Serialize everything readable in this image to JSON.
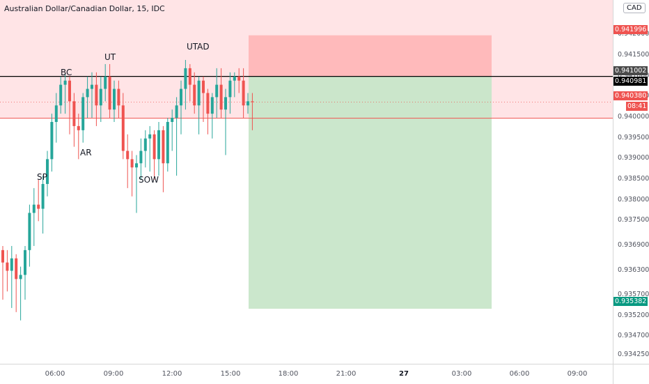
{
  "title": "Australian Dollar/Canadian Dollar, 15, IDC",
  "currency": "CAD",
  "colors": {
    "up": "#26a69a",
    "down": "#ef5350",
    "risk_zone": "#ffcdd2",
    "stop_box": "#ffb3b3",
    "target_box": "#c8e6c9",
    "entry_line": "#000000",
    "stop_line": "#ef5350"
  },
  "price_ticks": [
    "0.942000",
    "0.941500",
    "0.941000",
    "0.940500",
    "0.940000",
    "0.939500",
    "0.939000",
    "0.938500",
    "0.938000",
    "0.937500",
    "0.936900",
    "0.936300",
    "0.935700",
    "0.935200",
    "0.934700",
    "0.934250"
  ],
  "time_ticks": [
    "06:00",
    "09:00",
    "12:00",
    "15:00",
    "18:00",
    "21:00",
    "27",
    "03:00",
    "06:00",
    "09:00"
  ],
  "price_tags": {
    "stop": "0.941996",
    "entry": "0.941002",
    "last_price": "0.940981",
    "current": "0.940380",
    "countdown": "08:41",
    "target": "0.935382"
  },
  "annotations": {
    "sp": "SP",
    "bc": "BC",
    "ar": "AR",
    "ut": "UT",
    "sow": "SOW",
    "utad": "UTAD"
  },
  "chart_data": {
    "type": "candlestick",
    "symbol": "AUDCAD",
    "interval": "15",
    "ylim": [
      0.93405,
      0.94285
    ],
    "entry": 0.941002,
    "stop": 0.941996,
    "target": 0.935382,
    "stop_level_line": 0.93999,
    "candles": [
      {
        "o": 0.9368,
        "h": 0.9369,
        "l": 0.9356,
        "c": 0.9365
      },
      {
        "o": 0.9365,
        "h": 0.9368,
        "l": 0.9358,
        "c": 0.9363
      },
      {
        "o": 0.9363,
        "h": 0.9369,
        "l": 0.9354,
        "c": 0.9366
      },
      {
        "o": 0.9366,
        "h": 0.9367,
        "l": 0.9353,
        "c": 0.9361
      },
      {
        "o": 0.9361,
        "h": 0.9364,
        "l": 0.9351,
        "c": 0.9362
      },
      {
        "o": 0.9362,
        "h": 0.9369,
        "l": 0.9356,
        "c": 0.9368
      },
      {
        "o": 0.9368,
        "h": 0.9379,
        "l": 0.9364,
        "c": 0.9377
      },
      {
        "o": 0.9377,
        "h": 0.9383,
        "l": 0.9369,
        "c": 0.9379
      },
      {
        "o": 0.9379,
        "h": 0.9385,
        "l": 0.9375,
        "c": 0.9378
      },
      {
        "o": 0.9378,
        "h": 0.9386,
        "l": 0.9372,
        "c": 0.9384
      },
      {
        "o": 0.9384,
        "h": 0.9392,
        "l": 0.9381,
        "c": 0.939
      },
      {
        "o": 0.939,
        "h": 0.9401,
        "l": 0.9387,
        "c": 0.9399
      },
      {
        "o": 0.9399,
        "h": 0.9406,
        "l": 0.9394,
        "c": 0.9403
      },
      {
        "o": 0.9403,
        "h": 0.941,
        "l": 0.9401,
        "c": 0.9408
      },
      {
        "o": 0.9408,
        "h": 0.9411,
        "l": 0.9401,
        "c": 0.9409
      },
      {
        "o": 0.9409,
        "h": 0.941,
        "l": 0.9396,
        "c": 0.9404
      },
      {
        "o": 0.9404,
        "h": 0.9406,
        "l": 0.9393,
        "c": 0.9398
      },
      {
        "o": 0.9398,
        "h": 0.9401,
        "l": 0.939,
        "c": 0.9397
      },
      {
        "o": 0.9397,
        "h": 0.9406,
        "l": 0.9394,
        "c": 0.9405
      },
      {
        "o": 0.9405,
        "h": 0.941,
        "l": 0.94,
        "c": 0.9407
      },
      {
        "o": 0.9407,
        "h": 0.9411,
        "l": 0.94,
        "c": 0.9408
      },
      {
        "o": 0.9408,
        "h": 0.9411,
        "l": 0.9398,
        "c": 0.9403
      },
      {
        "o": 0.9403,
        "h": 0.941,
        "l": 0.9399,
        "c": 0.9407
      },
      {
        "o": 0.9407,
        "h": 0.9413,
        "l": 0.9404,
        "c": 0.941
      },
      {
        "o": 0.941,
        "h": 0.9413,
        "l": 0.94,
        "c": 0.9402
      },
      {
        "o": 0.9402,
        "h": 0.9409,
        "l": 0.9399,
        "c": 0.9407
      },
      {
        "o": 0.9407,
        "h": 0.9409,
        "l": 0.94,
        "c": 0.9403
      },
      {
        "o": 0.9403,
        "h": 0.9406,
        "l": 0.939,
        "c": 0.9392
      },
      {
        "o": 0.9392,
        "h": 0.9396,
        "l": 0.9383,
        "c": 0.939
      },
      {
        "o": 0.939,
        "h": 0.9392,
        "l": 0.9381,
        "c": 0.9388
      },
      {
        "o": 0.9388,
        "h": 0.9391,
        "l": 0.9377,
        "c": 0.9389
      },
      {
        "o": 0.9389,
        "h": 0.9395,
        "l": 0.9385,
        "c": 0.9392
      },
      {
        "o": 0.9392,
        "h": 0.9397,
        "l": 0.9388,
        "c": 0.9395
      },
      {
        "o": 0.9395,
        "h": 0.9398,
        "l": 0.9387,
        "c": 0.9396
      },
      {
        "o": 0.9396,
        "h": 0.9397,
        "l": 0.9385,
        "c": 0.939
      },
      {
        "o": 0.939,
        "h": 0.9399,
        "l": 0.9386,
        "c": 0.9397
      },
      {
        "o": 0.9397,
        "h": 0.9398,
        "l": 0.9382,
        "c": 0.9389
      },
      {
        "o": 0.9389,
        "h": 0.94,
        "l": 0.9387,
        "c": 0.9399
      },
      {
        "o": 0.9399,
        "h": 0.9402,
        "l": 0.9392,
        "c": 0.94
      },
      {
        "o": 0.94,
        "h": 0.9405,
        "l": 0.9386,
        "c": 0.9403
      },
      {
        "o": 0.9403,
        "h": 0.9409,
        "l": 0.9396,
        "c": 0.9407
      },
      {
        "o": 0.9407,
        "h": 0.9414,
        "l": 0.9402,
        "c": 0.9412
      },
      {
        "o": 0.9412,
        "h": 0.9413,
        "l": 0.9404,
        "c": 0.9408
      },
      {
        "o": 0.9408,
        "h": 0.9411,
        "l": 0.9401,
        "c": 0.9403
      },
      {
        "o": 0.9403,
        "h": 0.941,
        "l": 0.9396,
        "c": 0.9409
      },
      {
        "o": 0.9409,
        "h": 0.941,
        "l": 0.9399,
        "c": 0.9406
      },
      {
        "o": 0.9406,
        "h": 0.9407,
        "l": 0.9396,
        "c": 0.9401
      },
      {
        "o": 0.9401,
        "h": 0.9406,
        "l": 0.9395,
        "c": 0.9405
      },
      {
        "o": 0.9405,
        "h": 0.9412,
        "l": 0.94,
        "c": 0.9408
      },
      {
        "o": 0.9408,
        "h": 0.9412,
        "l": 0.94,
        "c": 0.9402
      },
      {
        "o": 0.9402,
        "h": 0.9407,
        "l": 0.9391,
        "c": 0.9405
      },
      {
        "o": 0.9405,
        "h": 0.9411,
        "l": 0.9401,
        "c": 0.9409
      },
      {
        "o": 0.9409,
        "h": 0.9411,
        "l": 0.9405,
        "c": 0.941
      },
      {
        "o": 0.941,
        "h": 0.9412,
        "l": 0.9406,
        "c": 0.9409
      },
      {
        "o": 0.9409,
        "h": 0.9412,
        "l": 0.94,
        "c": 0.9403
      },
      {
        "o": 0.9403,
        "h": 0.9406,
        "l": 0.9401,
        "c": 0.9404
      },
      {
        "o": 0.9404,
        "h": 0.9406,
        "l": 0.9397,
        "c": 0.94038
      }
    ]
  }
}
